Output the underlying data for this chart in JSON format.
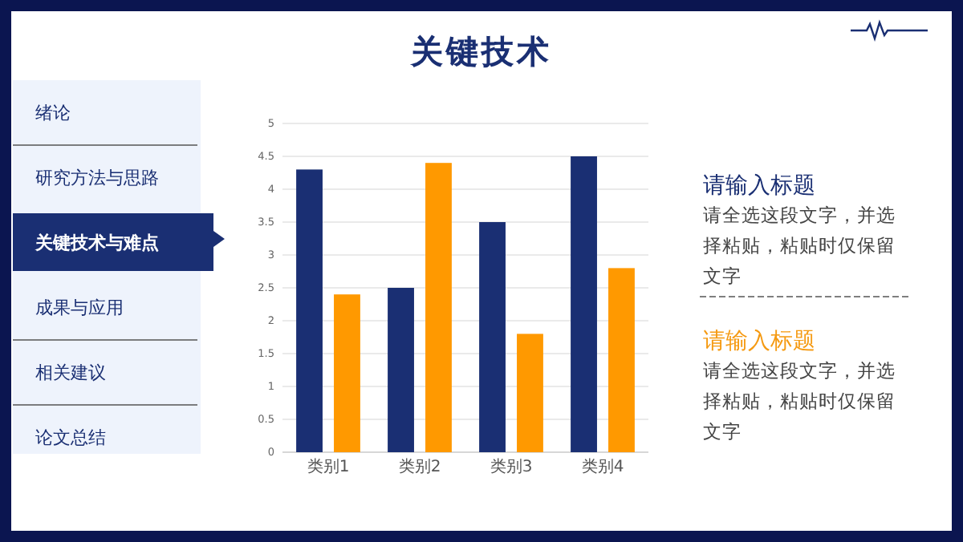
{
  "chart_data": {
    "type": "bar",
    "title": "关键技术",
    "categories": [
      "类别1",
      "类别2",
      "类别3",
      "类别4"
    ],
    "series": [
      {
        "color": "#1a2f73",
        "values": [
          4.3,
          2.5,
          3.5,
          4.5
        ]
      },
      {
        "color": "#ff9900",
        "values": [
          2.4,
          4.4,
          1.8,
          2.8
        ]
      }
    ],
    "ylim": [
      0,
      5
    ],
    "yticks": [
      0,
      0.5,
      1,
      1.5,
      2,
      2.5,
      3,
      3.5,
      4,
      4.5,
      5
    ],
    "grid": "y",
    "annotations": [
      "绪论",
      "研究方法与思路",
      "关键技术与难点",
      "成果与应用",
      "相关建议",
      "论文总结",
      "请输入标题",
      "请全选这段文字，并选择粘贴，粘贴时仅保留文字",
      "请输入标题",
      "请全选这段文字，并选择粘贴，粘贴时仅保留文字"
    ]
  }
}
